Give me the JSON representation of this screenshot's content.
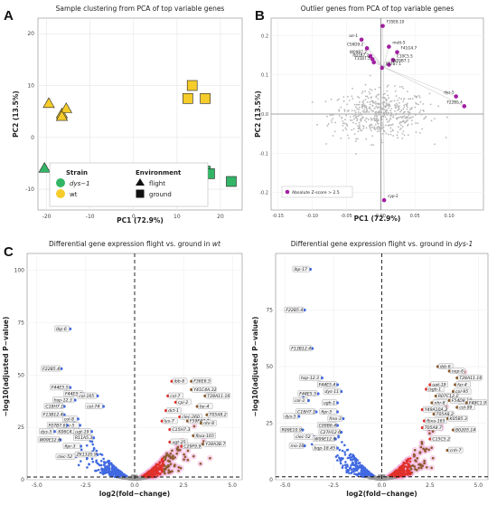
{
  "chart_data": [
    {
      "id": "A",
      "panel_label": "A",
      "type": "scatter",
      "title": "Sample clustering from PCA of top variable genes",
      "xlabel": "PC1 (72.9%)",
      "ylabel": "PC2 (13.5%)",
      "xlim": [
        -22,
        25
      ],
      "ylim": [
        -14,
        23
      ],
      "xticks": [
        -20,
        -10,
        0,
        10,
        20
      ],
      "yticks": [
        -10,
        0,
        10,
        20
      ],
      "grid": true,
      "legend_position": "bottom-right",
      "legend": {
        "strain_title": "Strain",
        "strain_items": [
          {
            "label": "dys−1",
            "color": "#33b566"
          },
          {
            "label": "wt",
            "color": "#f5cc2a"
          }
        ],
        "env_title": "Environment",
        "env_items": [
          {
            "label": "flight",
            "shape": "triangle"
          },
          {
            "label": "ground",
            "shape": "square"
          }
        ]
      },
      "series": [
        {
          "name": "dys-1 flight",
          "color": "#33b566",
          "shape": "triangle",
          "points": [
            [
              -20.5,
              -6
            ],
            [
              -17.5,
              -7
            ],
            [
              -14.5,
              -7
            ]
          ]
        },
        {
          "name": "wt flight",
          "color": "#f5cc2a",
          "shape": "triangle",
          "points": [
            [
              -19.5,
              6.5
            ],
            [
              -16.5,
              4.5
            ],
            [
              -15.5,
              5.5
            ],
            [
              -16.5,
              4
            ]
          ]
        },
        {
          "name": "wt ground",
          "color": "#f5cc2a",
          "shape": "square",
          "points": [
            [
              12.5,
              7.5
            ],
            [
              13.5,
              10
            ],
            [
              16.5,
              7.5
            ]
          ]
        },
        {
          "name": "dys-1 ground",
          "color": "#33b566",
          "shape": "square",
          "points": [
            [
              16.5,
              -6.5
            ],
            [
              17.5,
              -7
            ],
            [
              22.5,
              -8.5
            ]
          ]
        }
      ]
    },
    {
      "id": "B",
      "panel_label": "B",
      "type": "scatter",
      "title": "Outlier genes from PCA of top variable genes",
      "xlabel": "PC1 (72.9%)",
      "ylabel": "PC2 (13.5%)",
      "xlim": [
        -0.16,
        0.15
      ],
      "ylim": [
        -0.245,
        0.245
      ],
      "xticks": [
        -0.15,
        -0.1,
        -0.05,
        0.0,
        0.05,
        0.1
      ],
      "yticks": [
        -0.2,
        -0.1,
        0.0,
        0.1,
        0.2
      ],
      "legend_label": "Absolute Z-score > 2.5",
      "outlier_color": "#a020a0",
      "background_color": "#b8b8b8",
      "outliers": [
        {
          "label": "F35E8.10",
          "x": 0.003,
          "y": 0.225
        },
        {
          "label": "arr-1",
          "x": -0.028,
          "y": 0.19
        },
        {
          "label": "C56D9.2",
          "x": -0.02,
          "y": 0.168
        },
        {
          "label": "mett-5",
          "x": 0.012,
          "y": 0.172
        },
        {
          "label": "F41G4.7",
          "x": 0.024,
          "y": 0.158
        },
        {
          "label": "W09B7.2",
          "x": -0.015,
          "y": 0.148
        },
        {
          "label": "R01B7.2",
          "x": -0.012,
          "y": 0.14
        },
        {
          "label": "C10C5.5",
          "x": 0.018,
          "y": 0.138
        },
        {
          "label": "T11B7.5",
          "x": -0.01,
          "y": 0.132
        },
        {
          "label": "W09B7.1",
          "x": 0.012,
          "y": 0.126
        },
        {
          "label": "F07B7.1",
          "x": 0.002,
          "y": 0.118
        },
        {
          "label": "dys-5",
          "x": 0.11,
          "y": 0.045
        },
        {
          "label": "F22B5.4",
          "x": 0.122,
          "y": 0.02
        },
        {
          "label": "cyp-2",
          "x": 0.005,
          "y": -0.22
        }
      ]
    },
    {
      "id": "C-wt",
      "panel_label": "C",
      "type": "scatter",
      "title_plain": "Differential gene expression flight vs. ground in ",
      "title_italic": "wt",
      "xlabel": "log2(fold−change)",
      "ylabel": "−log10(adjusted P−value)",
      "xlim": [
        -5.5,
        5.5
      ],
      "ylim": [
        0,
        108
      ],
      "xticks": [
        -5.0,
        -2.5,
        0.0,
        2.5,
        5.0
      ],
      "yticks": [
        0,
        25,
        50,
        75,
        100
      ],
      "significance_line": 1.3,
      "colors": {
        "down": "#4169e1",
        "up_large": "#8b5a2b",
        "up": "#e0302a",
        "ns": "#9a9a9a",
        "halo": "#f2b3de"
      },
      "labels": [
        {
          "text": "lbp-6",
          "x": -3.3,
          "y": 72
        },
        {
          "text": "F22B5.4",
          "x": -3.75,
          "y": 53
        },
        {
          "text": "F44E5.5",
          "x": -3.3,
          "y": 44
        },
        {
          "text": "F44E5.4",
          "x": -2.6,
          "y": 41
        },
        {
          "text": "hsp-12.3",
          "x": -3.05,
          "y": 38
        },
        {
          "text": "C18H7.1",
          "x": -3.6,
          "y": 35
        },
        {
          "text": "col-165",
          "x": -1.9,
          "y": 40
        },
        {
          "text": "col-74",
          "x": -1.6,
          "y": 35
        },
        {
          "text": "F13B12.4",
          "x": -3.6,
          "y": 31
        },
        {
          "text": "col-8",
          "x": -2.9,
          "y": 29
        },
        {
          "text": "fipr-5",
          "x": -2.8,
          "y": 26
        },
        {
          "text": "F07B7.6",
          "x": -3.45,
          "y": 26
        },
        {
          "text": "K06C4.1",
          "x": -2.95,
          "y": 23
        },
        {
          "text": "dys-5",
          "x": -4.1,
          "y": 23
        },
        {
          "text": "ugt-19",
          "x": -2.2,
          "y": 23
        },
        {
          "text": "W09E12.6",
          "x": -3.8,
          "y": 19
        },
        {
          "text": "R11A5.3",
          "x": -2.1,
          "y": 20
        },
        {
          "text": "fipr-3",
          "x": -2.75,
          "y": 16
        },
        {
          "text": "clec-52",
          "x": -3.0,
          "y": 11
        },
        {
          "text": "ZK1320.9",
          "x": -1.9,
          "y": 12
        },
        {
          "text": "ibb-6",
          "x": 1.9,
          "y": 47
        },
        {
          "text": "F36E6.5",
          "x": 2.9,
          "y": 47
        },
        {
          "text": "Y41C4A.32",
          "x": 2.9,
          "y": 43
        },
        {
          "text": "col-7",
          "x": 1.7,
          "y": 40
        },
        {
          "text": "T28A11.16",
          "x": 3.6,
          "y": 40
        },
        {
          "text": "cpi-2",
          "x": 2.1,
          "y": 37
        },
        {
          "text": "far-4",
          "x": 3.2,
          "y": 35
        },
        {
          "text": "dct-1",
          "x": 1.6,
          "y": 33
        },
        {
          "text": "T05A8.2",
          "x": 3.7,
          "y": 31
        },
        {
          "text": "clec-260",
          "x": 2.3,
          "y": 30
        },
        {
          "text": "lys-7",
          "x": 1.4,
          "y": 28
        },
        {
          "text": "F59F47.7",
          "x": 2.7,
          "y": 28
        },
        {
          "text": "nhr-8",
          "x": 3.4,
          "y": 27
        },
        {
          "text": "C15H7.3",
          "x": 1.8,
          "y": 24
        },
        {
          "text": "fbxa-165",
          "x": 3.0,
          "y": 21
        },
        {
          "text": "ugt-25",
          "x": 1.8,
          "y": 18
        },
        {
          "text": "C29F9.9",
          "x": 2.4,
          "y": 16
        },
        {
          "text": "Y38A3B.7",
          "x": 3.5,
          "y": 17
        }
      ]
    },
    {
      "id": "C-dys1",
      "panel_label": "",
      "type": "scatter",
      "title_plain": "Differential gene expression flight vs. ground in ",
      "title_italic": "dys-1",
      "xlabel": "log2(fold−change)",
      "ylabel": "−log10(adjusted P−value)",
      "xlim": [
        -5.5,
        5.5
      ],
      "ylim": [
        0,
        100
      ],
      "xticks": [
        -5.0,
        -2.5,
        0.0,
        2.5,
        5.0
      ],
      "yticks": [
        0,
        25,
        50,
        75
      ],
      "significance_line": 1.3,
      "colors": {
        "down": "#4169e1",
        "up_large": "#8b5a2b",
        "up": "#e0302a",
        "ns": "#9a9a9a",
        "halo": "#f2b3de"
      },
      "labels": [
        {
          "text": "lbp-17",
          "x": -3.7,
          "y": 93
        },
        {
          "text": "F22B5.4",
          "x": -4.0,
          "y": 75
        },
        {
          "text": "F13B12.4",
          "x": -3.6,
          "y": 58
        },
        {
          "text": "hsp-12.3",
          "x": -3.1,
          "y": 45
        },
        {
          "text": "F44E5.4",
          "x": -2.3,
          "y": 42
        },
        {
          "text": "dys-11",
          "x": -2.1,
          "y": 39
        },
        {
          "text": "F44E5.5",
          "x": -3.3,
          "y": 38
        },
        {
          "text": "col-3",
          "x": -3.8,
          "y": 35
        },
        {
          "text": "ugh-1",
          "x": -2.3,
          "y": 34
        },
        {
          "text": "C18H7.1",
          "x": -3.4,
          "y": 30
        },
        {
          "text": "dys-5",
          "x": -4.3,
          "y": 28
        },
        {
          "text": "fipr-5",
          "x": -2.3,
          "y": 30
        },
        {
          "text": "fmo-3",
          "x": -2.0,
          "y": 27
        },
        {
          "text": "C09B6.4",
          "x": -2.3,
          "y": 24
        },
        {
          "text": "R09E10.9",
          "x": -4.1,
          "y": 22
        },
        {
          "text": "C27H12.6",
          "x": -2.1,
          "y": 21
        },
        {
          "text": "clec-52",
          "x": -3.5,
          "y": 19
        },
        {
          "text": "W09E12.6",
          "x": -2.4,
          "y": 18
        },
        {
          "text": "mo-16",
          "x": -4.0,
          "y": 15
        },
        {
          "text": "bqp-18.45",
          "x": -2.3,
          "y": 14
        },
        {
          "text": "ibb-6",
          "x": 2.9,
          "y": 50
        },
        {
          "text": "nep-6",
          "x": 3.5,
          "y": 48
        },
        {
          "text": "T28A11.16",
          "x": 3.9,
          "y": 45
        },
        {
          "text": "ugt-19",
          "x": 2.5,
          "y": 42
        },
        {
          "text": "far-4",
          "x": 3.8,
          "y": 42
        },
        {
          "text": "lsgb-1",
          "x": 2.3,
          "y": 40
        },
        {
          "text": "col-95",
          "x": 3.7,
          "y": 39
        },
        {
          "text": "R07C12.1",
          "x": 2.8,
          "y": 37
        },
        {
          "text": "F54D8.10",
          "x": 3.5,
          "y": 35
        },
        {
          "text": "nhr-8",
          "x": 2.6,
          "y": 34
        },
        {
          "text": "F48C1.9",
          "x": 4.4,
          "y": 34
        },
        {
          "text": "Y49A10A.2",
          "x": 2.1,
          "y": 31
        },
        {
          "text": "col-99",
          "x": 3.9,
          "y": 32
        },
        {
          "text": "T05A8.2",
          "x": 2.7,
          "y": 29
        },
        {
          "text": "K05B5.3",
          "x": 3.4,
          "y": 27
        },
        {
          "text": "fbxa-165",
          "x": 2.2,
          "y": 26
        },
        {
          "text": "T05A8.7",
          "x": 2.1,
          "y": 23
        },
        {
          "text": "B0205.14",
          "x": 3.7,
          "y": 22
        },
        {
          "text": "C15C5.2",
          "x": 2.5,
          "y": 18
        },
        {
          "text": "cnh-7",
          "x": 3.4,
          "y": 13
        }
      ]
    }
  ]
}
